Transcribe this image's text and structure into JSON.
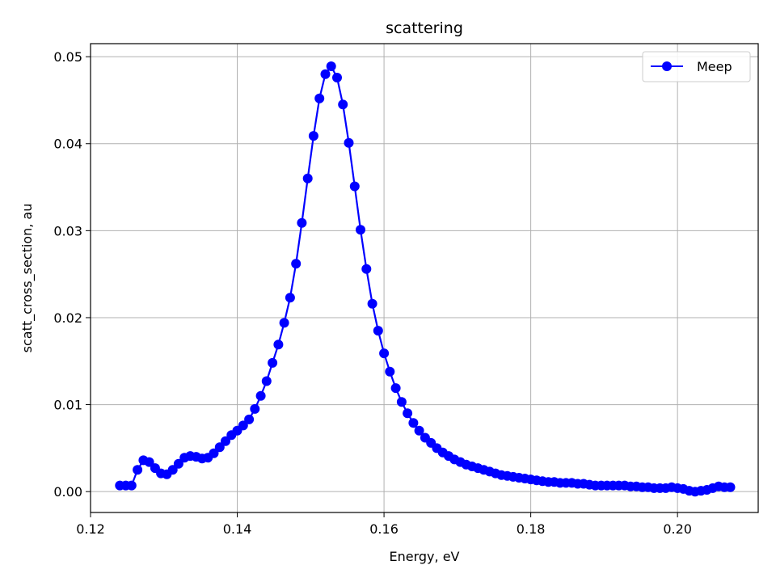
{
  "chart_data": {
    "type": "line",
    "title": "scattering",
    "xlabel": "Energy, eV",
    "ylabel": "scatt_cross_section, au",
    "xlim": [
      0.12,
      0.211
    ],
    "ylim": [
      -0.0024,
      0.0515
    ],
    "xticks": [
      0.12,
      0.14,
      0.16,
      0.18,
      0.2
    ],
    "xtick_labels": [
      "0.12",
      "0.14",
      "0.16",
      "0.18",
      "0.20"
    ],
    "yticks": [
      0.0,
      0.01,
      0.02,
      0.03,
      0.04,
      0.05
    ],
    "ytick_labels": [
      "0.00",
      "0.01",
      "0.02",
      "0.03",
      "0.04",
      "0.05"
    ],
    "grid": true,
    "legend_position": "top-right",
    "series": [
      {
        "name": "Meep",
        "color": "#0000ff",
        "marker": "circle",
        "x": [
          0.124,
          0.1248,
          0.1256,
          0.1264,
          0.1272,
          0.128,
          0.1288,
          0.1296,
          0.1304,
          0.1312,
          0.132,
          0.1328,
          0.1336,
          0.1344,
          0.1352,
          0.136,
          0.1368,
          0.1376,
          0.1384,
          0.1392,
          0.14,
          0.1408,
          0.1416,
          0.1424,
          0.1432,
          0.144,
          0.1448,
          0.1456,
          0.1464,
          0.1472,
          0.148,
          0.1488,
          0.1496,
          0.1504,
          0.1512,
          0.152,
          0.1528,
          0.1536,
          0.1544,
          0.1552,
          0.156,
          0.1568,
          0.1576,
          0.1584,
          0.1592,
          0.16,
          0.1608,
          0.1616,
          0.1624,
          0.1632,
          0.164,
          0.1648,
          0.1656,
          0.1664,
          0.1672,
          0.168,
          0.1688,
          0.1696,
          0.1704,
          0.1712,
          0.172,
          0.1728,
          0.1736,
          0.1744,
          0.1752,
          0.176,
          0.1768,
          0.1776,
          0.1784,
          0.1792,
          0.18,
          0.1808,
          0.1816,
          0.1824,
          0.1832,
          0.184,
          0.1848,
          0.1856,
          0.1864,
          0.1872,
          0.188,
          0.1888,
          0.1896,
          0.1904,
          0.1912,
          0.192,
          0.1928,
          0.1936,
          0.1944,
          0.1952,
          0.196,
          0.1968,
          0.1976,
          0.1984,
          0.1992,
          0.2,
          0.2008,
          0.2016,
          0.2024,
          0.2032,
          0.204,
          0.2048,
          0.2056,
          0.2064,
          0.2072
        ],
        "y": [
          0.0007,
          0.0007,
          0.0007,
          0.0025,
          0.0036,
          0.0034,
          0.0027,
          0.0021,
          0.002,
          0.0025,
          0.0032,
          0.0039,
          0.0041,
          0.004,
          0.0038,
          0.0039,
          0.0044,
          0.0051,
          0.0058,
          0.0065,
          0.007,
          0.0076,
          0.0083,
          0.0095,
          0.011,
          0.0127,
          0.0148,
          0.0169,
          0.0194,
          0.0223,
          0.0262,
          0.0309,
          0.036,
          0.0409,
          0.0452,
          0.048,
          0.0489,
          0.0476,
          0.0445,
          0.0401,
          0.0351,
          0.0301,
          0.0256,
          0.0216,
          0.0185,
          0.0159,
          0.0138,
          0.0119,
          0.0103,
          0.009,
          0.0079,
          0.007,
          0.0062,
          0.0056,
          0.005,
          0.0045,
          0.0041,
          0.0037,
          0.0034,
          0.0031,
          0.0029,
          0.0027,
          0.0025,
          0.0023,
          0.0021,
          0.0019,
          0.0018,
          0.0017,
          0.0016,
          0.0015,
          0.0014,
          0.0013,
          0.0012,
          0.0011,
          0.0011,
          0.001,
          0.001,
          0.001,
          0.0009,
          0.0009,
          0.0008,
          0.0007,
          0.0007,
          0.0007,
          0.0007,
          0.0007,
          0.0007,
          0.0006,
          0.0006,
          0.0005,
          0.0005,
          0.0004,
          0.0004,
          0.0004,
          0.0005,
          0.0004,
          0.0003,
          0.0001,
          0.0,
          0.0001,
          0.0002,
          0.0004,
          0.0006,
          0.0005,
          0.0005
        ]
      }
    ]
  }
}
